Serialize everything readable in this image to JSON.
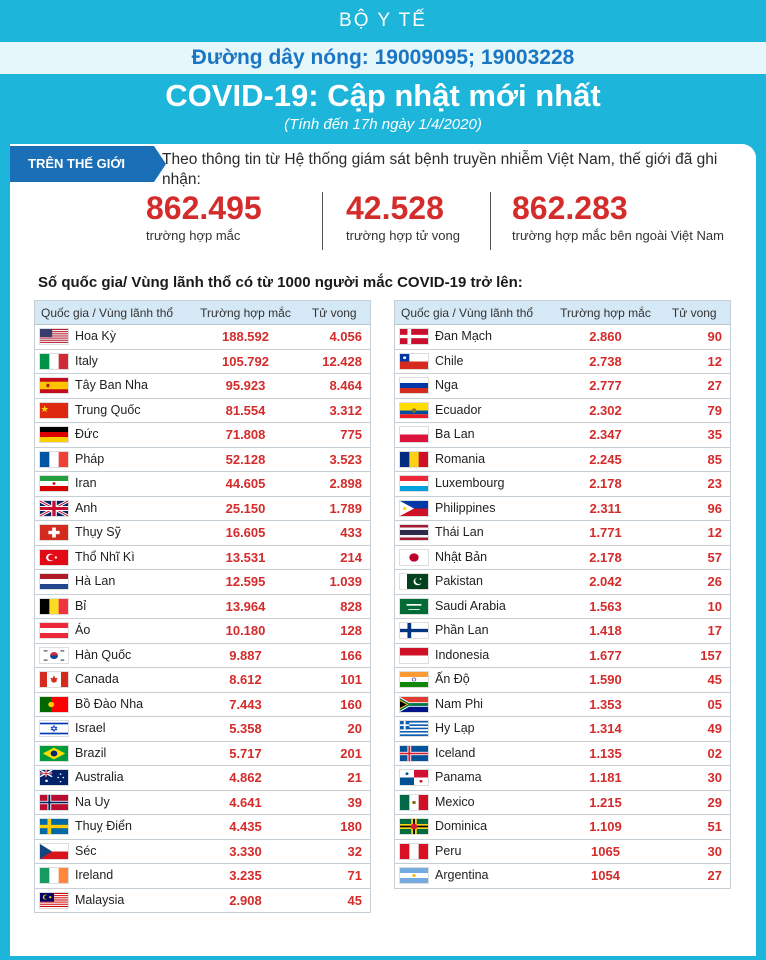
{
  "header": {
    "org": "BỘ Y TẾ",
    "hotline": "Đường dây nóng: 19009095; 19003228",
    "title": "COVID-19: Cập nhật mới nhất",
    "subtitle": "(Tính đến 17h ngày 1/4/2020)"
  },
  "world": {
    "tab_label": "TRÊN THẾ GIỚI",
    "intro": "Theo thông tin từ Hệ thống giám sát bệnh truyền nhiễm Việt Nam, thế giới đã ghi nhận:",
    "stats": [
      {
        "value": "862.495",
        "label": "trường hợp mắc"
      },
      {
        "value": "42.528",
        "label": "trường hợp tử vong"
      },
      {
        "value": "862.283",
        "label": "trường hợp  mắc bên ngoài Việt Nam"
      }
    ]
  },
  "section_heading": "Số quốc gia/ Vùng lãnh thổ có từ 1000 người  mắc COVID-19 trở lên:",
  "columns": {
    "country": "Quốc gia / Vùng lãnh thổ",
    "cases": "Trường hợp mắc",
    "deaths": "Tử vong"
  },
  "countries_left": [
    {
      "name": "Hoa Kỳ",
      "cases": "188.592",
      "deaths": "4.056",
      "flag": "us-flag-icon"
    },
    {
      "name": "Italy",
      "cases": "105.792",
      "deaths": "12.428",
      "flag": "italy-flag-icon"
    },
    {
      "name": "Tây Ban Nha",
      "cases": "95.923",
      "deaths": "8.464",
      "flag": "spain-flag-icon"
    },
    {
      "name": "Trung Quốc",
      "cases": "81.554",
      "deaths": "3.312",
      "flag": "china-flag-icon"
    },
    {
      "name": "Đức",
      "cases": "71.808",
      "deaths": "775",
      "flag": "germany-flag-icon"
    },
    {
      "name": "Pháp",
      "cases": "52.128",
      "deaths": "3.523",
      "flag": "france-flag-icon"
    },
    {
      "name": "Iran",
      "cases": "44.605",
      "deaths": "2.898",
      "flag": "iran-flag-icon"
    },
    {
      "name": "Anh",
      "cases": "25.150",
      "deaths": "1.789",
      "flag": "uk-flag-icon"
    },
    {
      "name": "Thụy Sỹ",
      "cases": "16.605",
      "deaths": "433",
      "flag": "switzerland-flag-icon"
    },
    {
      "name": "Thổ Nhĩ Kì",
      "cases": "13.531",
      "deaths": "214",
      "flag": "turkey-flag-icon"
    },
    {
      "name": "Hà Lan",
      "cases": "12.595",
      "deaths": "1.039",
      "flag": "netherlands-flag-icon"
    },
    {
      "name": "Bỉ",
      "cases": "13.964",
      "deaths": "828",
      "flag": "belgium-flag-icon"
    },
    {
      "name": "Áo",
      "cases": "10.180",
      "deaths": "128",
      "flag": "austria-flag-icon"
    },
    {
      "name": "Hàn Quốc",
      "cases": "9.887",
      "deaths": "166",
      "flag": "south-korea-flag-icon"
    },
    {
      "name": "Canada",
      "cases": "8.612",
      "deaths": "101",
      "flag": "canada-flag-icon"
    },
    {
      "name": "Bồ Đào Nha",
      "cases": "7.443",
      "deaths": "160",
      "flag": "portugal-flag-icon"
    },
    {
      "name": "Israel",
      "cases": "5.358",
      "deaths": "20",
      "flag": "israel-flag-icon"
    },
    {
      "name": "Brazil",
      "cases": "5.717",
      "deaths": "201",
      "flag": "brazil-flag-icon"
    },
    {
      "name": "Australia",
      "cases": "4.862",
      "deaths": "21",
      "flag": "australia-flag-icon"
    },
    {
      "name": "Na Uy",
      "cases": "4.641",
      "deaths": "39",
      "flag": "norway-flag-icon"
    },
    {
      "name": "Thuỵ Điển",
      "cases": "4.435",
      "deaths": "180",
      "flag": "sweden-flag-icon"
    },
    {
      "name": "Séc",
      "cases": "3.330",
      "deaths": "32",
      "flag": "czech-flag-icon"
    },
    {
      "name": "Ireland",
      "cases": "3.235",
      "deaths": "71",
      "flag": "ireland-flag-icon"
    },
    {
      "name": "Malaysia",
      "cases": "2.908",
      "deaths": "45",
      "flag": "malaysia-flag-icon"
    }
  ],
  "countries_right": [
    {
      "name": "Đan Mạch",
      "cases": "2.860",
      "deaths": "90",
      "flag": "denmark-flag-icon"
    },
    {
      "name": "Chile",
      "cases": "2.738",
      "deaths": "12",
      "flag": "chile-flag-icon"
    },
    {
      "name": "Nga",
      "cases": "2.777",
      "deaths": "27",
      "flag": "russia-flag-icon"
    },
    {
      "name": "Ecuador",
      "cases": "2.302",
      "deaths": "79",
      "flag": "ecuador-flag-icon"
    },
    {
      "name": "Ba Lan",
      "cases": "2.347",
      "deaths": "35",
      "flag": "poland-flag-icon"
    },
    {
      "name": "Romania",
      "cases": "2.245",
      "deaths": "85",
      "flag": "romania-flag-icon"
    },
    {
      "name": "Luxembourg",
      "cases": "2.178",
      "deaths": "23",
      "flag": "luxembourg-flag-icon"
    },
    {
      "name": "Philippines",
      "cases": "2.311",
      "deaths": "96",
      "flag": "philippines-flag-icon"
    },
    {
      "name": "Thái Lan",
      "cases": "1.771",
      "deaths": "12",
      "flag": "thailand-flag-icon"
    },
    {
      "name": "Nhật Bản",
      "cases": "2.178",
      "deaths": "57",
      "flag": "japan-flag-icon"
    },
    {
      "name": "Pakistan",
      "cases": "2.042",
      "deaths": "26",
      "flag": "pakistan-flag-icon"
    },
    {
      "name": "Saudi Arabia",
      "cases": "1.563",
      "deaths": "10",
      "flag": "saudi-arabia-flag-icon"
    },
    {
      "name": "Phần Lan",
      "cases": "1.418",
      "deaths": "17",
      "flag": "finland-flag-icon"
    },
    {
      "name": "Indonesia",
      "cases": "1.677",
      "deaths": "157",
      "flag": "indonesia-flag-icon"
    },
    {
      "name": "Ấn Độ",
      "cases": "1.590",
      "deaths": "45",
      "flag": "india-flag-icon"
    },
    {
      "name": "Nam Phi",
      "cases": "1.353",
      "deaths": "05",
      "flag": "south-africa-flag-icon"
    },
    {
      "name": "Hy Lạp",
      "cases": "1.314",
      "deaths": "49",
      "flag": "greece-flag-icon"
    },
    {
      "name": "Iceland",
      "cases": "1.135",
      "deaths": "02",
      "flag": "iceland-flag-icon"
    },
    {
      "name": "Panama",
      "cases": "1.181",
      "deaths": "30",
      "flag": "panama-flag-icon"
    },
    {
      "name": "Mexico",
      "cases": "1.215",
      "deaths": "29",
      "flag": "mexico-flag-icon"
    },
    {
      "name": "Dominica",
      "cases": "1.109",
      "deaths": "51",
      "flag": "dominica-flag-icon"
    },
    {
      "name": "Peru",
      "cases": "1065",
      "deaths": "30",
      "flag": "peru-flag-icon"
    },
    {
      "name": "Argentina",
      "cases": "1054",
      "deaths": "27",
      "flag": "argentina-flag-icon"
    }
  ],
  "colors": {
    "background": "#1db5d9",
    "header_blue": "#1a76c2",
    "accent_red": "#d42b2b",
    "tab_blue": "#1a6fb6",
    "table_header": "#d5e8f5"
  }
}
